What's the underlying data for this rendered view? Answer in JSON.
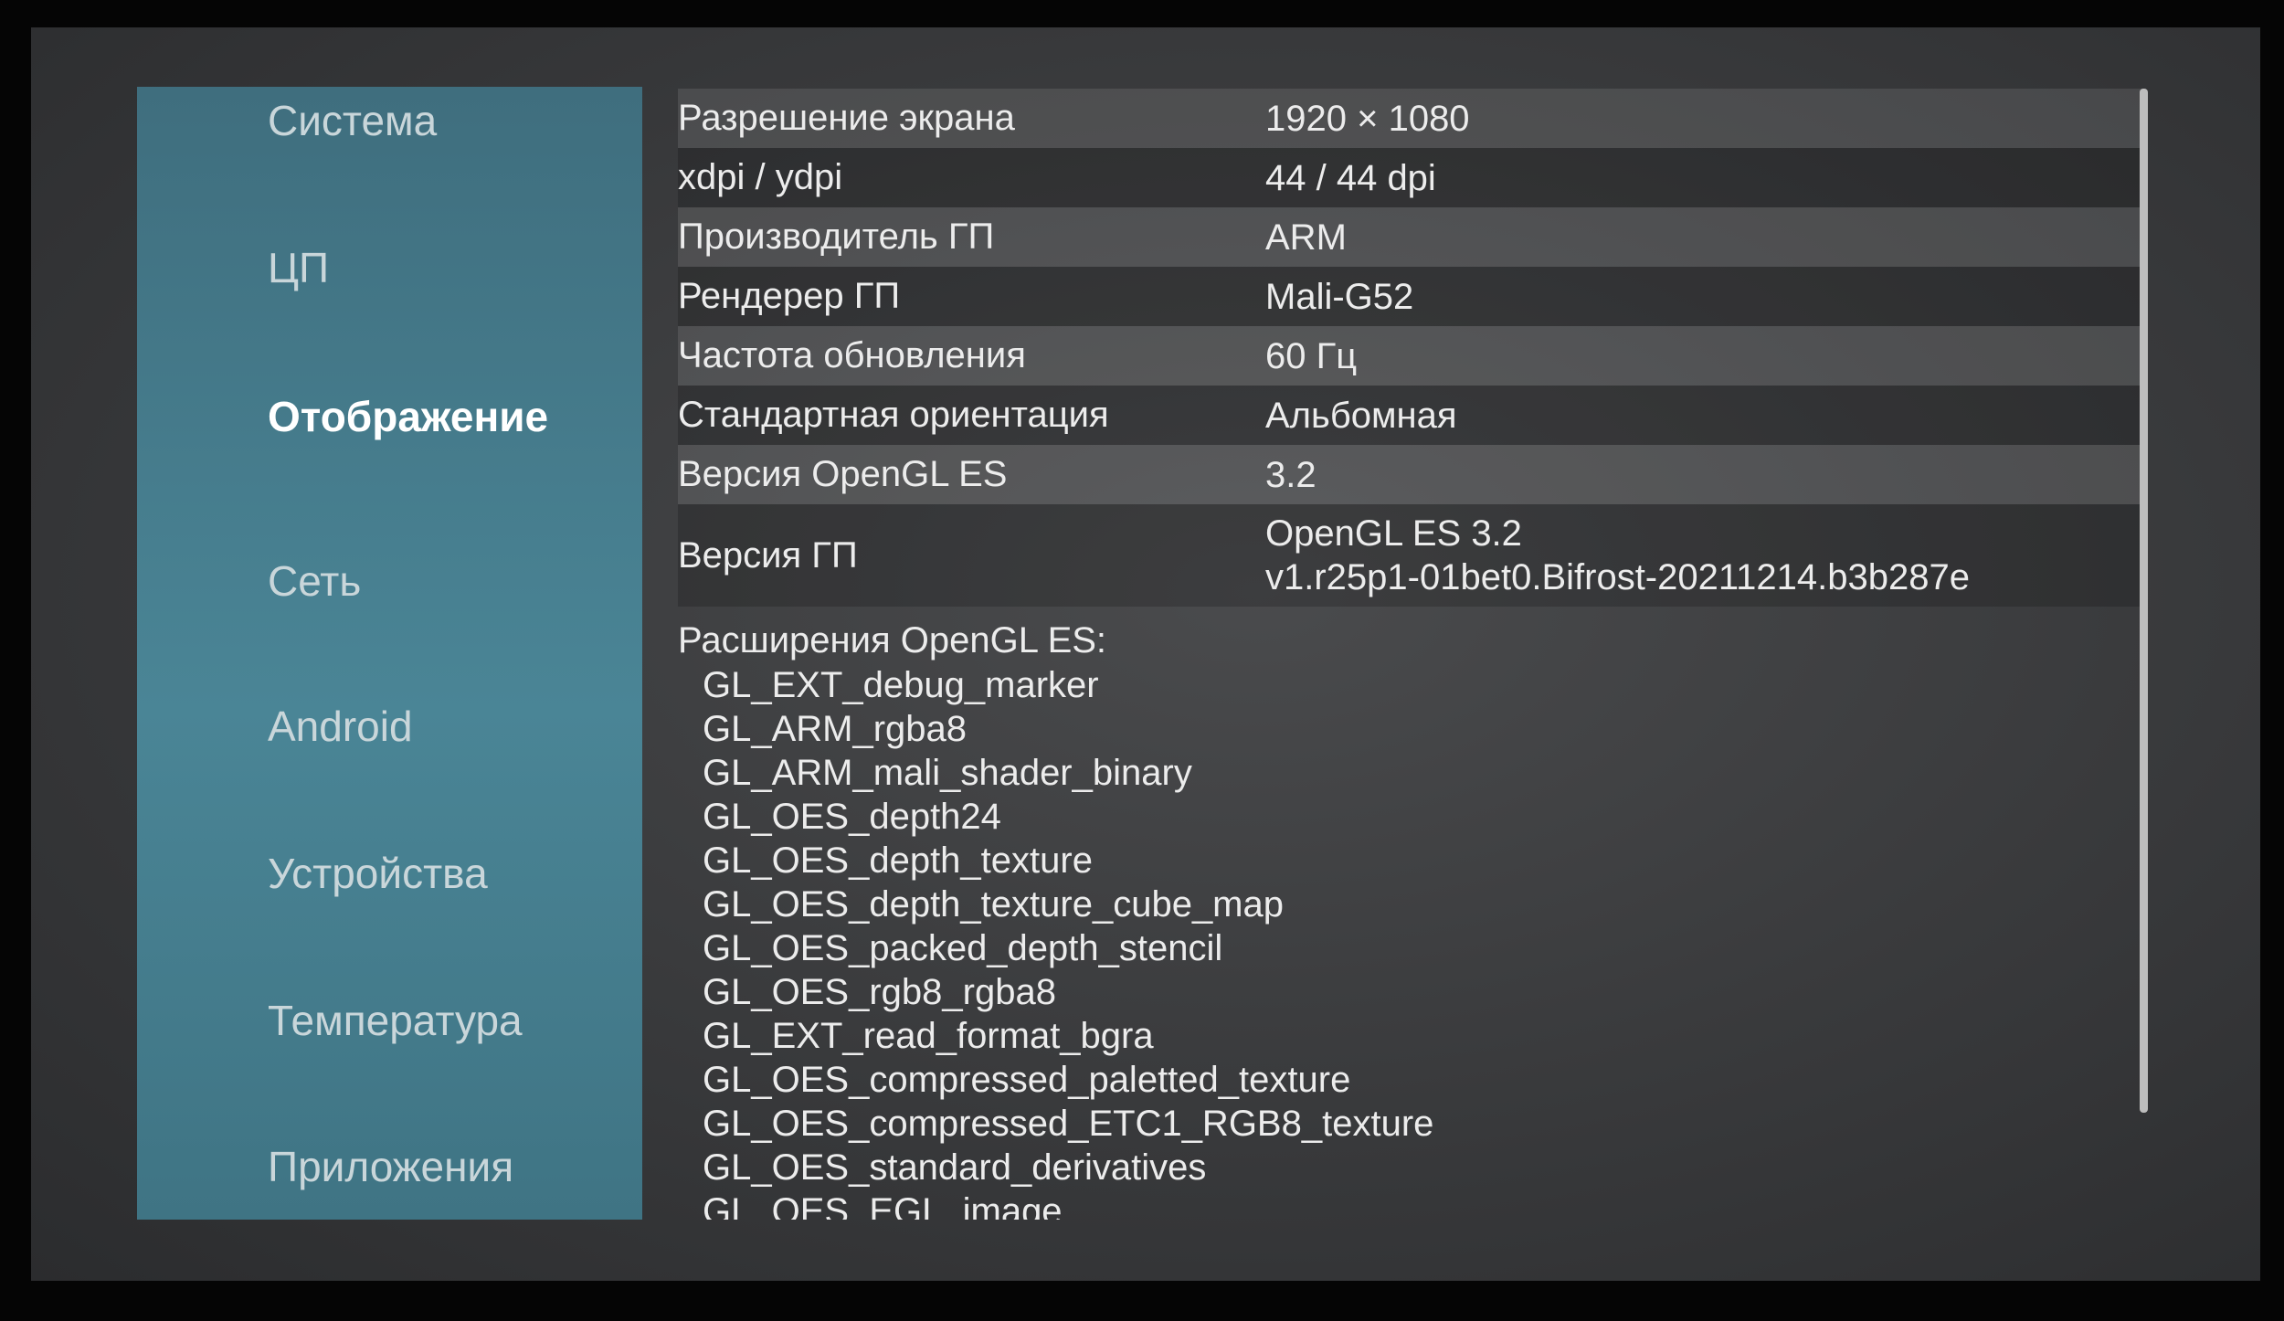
{
  "sidebar": {
    "items": [
      {
        "label": "Система"
      },
      {
        "label": "ЦП"
      },
      {
        "label": "Отображение",
        "active": true
      },
      {
        "label": "Сеть"
      },
      {
        "label": "Android"
      },
      {
        "label": "Устройства"
      },
      {
        "label": "Температура"
      },
      {
        "label": "Приложения"
      }
    ]
  },
  "display_info": {
    "rows": [
      {
        "label": "Разрешение экрана",
        "value": "1920 × 1080"
      },
      {
        "label": "xdpi / ydpi",
        "value": "44 / 44 dpi"
      },
      {
        "label": "Производитель ГП",
        "value": "ARM"
      },
      {
        "label": "Рендерер ГП",
        "value": "Mali-G52"
      },
      {
        "label": "Частота обновления",
        "value": "60 Гц"
      },
      {
        "label": "Стандартная ориентация",
        "value": "Альбомная"
      },
      {
        "label": "Версия OpenGL ES",
        "value": "3.2"
      },
      {
        "label": "Версия ГП",
        "value_line1": "OpenGL ES 3.2",
        "value_line2": "v1.r25p1-01bet0.Bifrost-20211214.b3b287e"
      }
    ],
    "extensions_title": "Расширения OpenGL ES:",
    "extensions": [
      "GL_EXT_debug_marker",
      "GL_ARM_rgba8",
      "GL_ARM_mali_shader_binary",
      "GL_OES_depth24",
      "GL_OES_depth_texture",
      "GL_OES_depth_texture_cube_map",
      "GL_OES_packed_depth_stencil",
      "GL_OES_rgb8_rgba8",
      "GL_EXT_read_format_bgra",
      "GL_OES_compressed_paletted_texture",
      "GL_OES_compressed_ETC1_RGB8_texture",
      "GL_OES_standard_derivatives",
      "GL_OES_EGL_image"
    ]
  },
  "colors": {
    "sidebar": "#4a8596",
    "background": "#3a3b3d",
    "text": "#ececec"
  }
}
